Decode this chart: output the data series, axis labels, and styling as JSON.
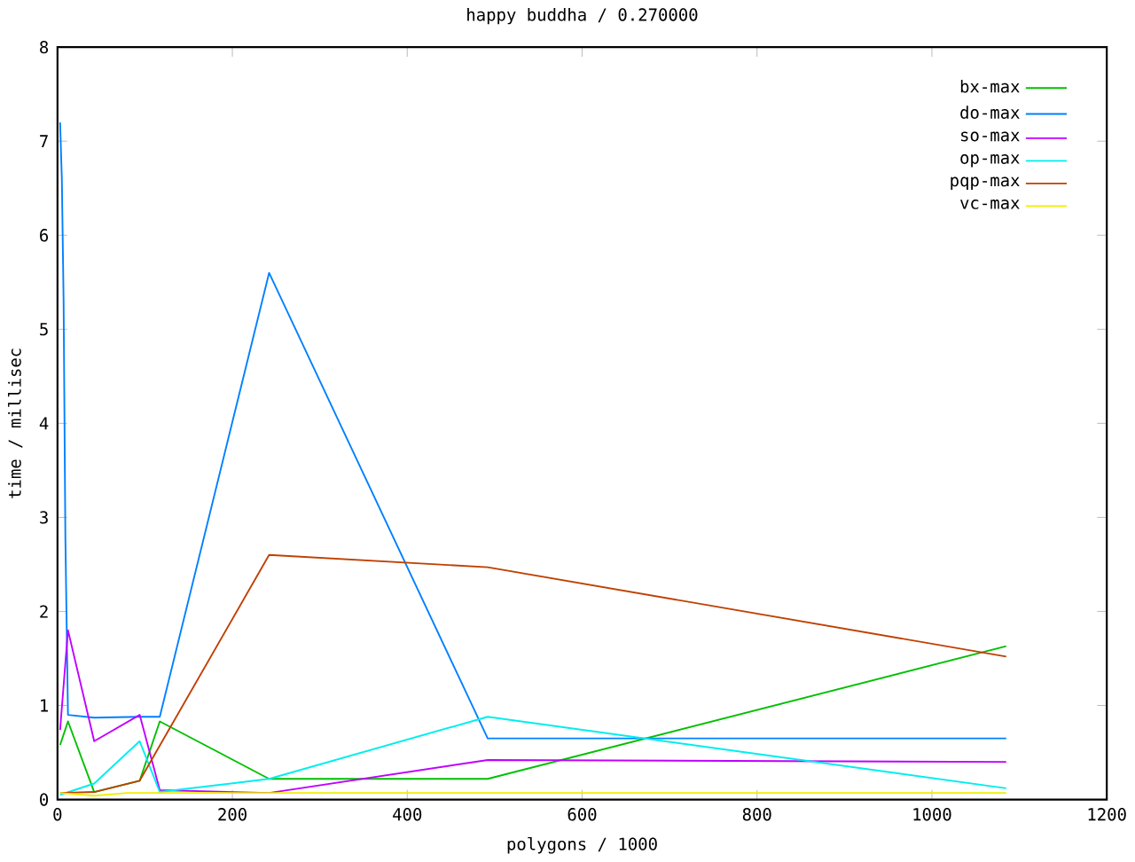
{
  "chart_data": {
    "type": "line",
    "title": "happy buddha / 0.270000",
    "xlabel": "polygons / 1000",
    "ylabel": "time / millisec",
    "xlim": [
      0,
      1200
    ],
    "xticks": [
      0,
      200,
      400,
      600,
      800,
      1000,
      1200
    ],
    "ylim": [
      0,
      8
    ],
    "yticks": [
      0,
      1,
      2,
      3,
      4,
      5,
      6,
      7,
      8
    ],
    "grid": false,
    "legend": "top right",
    "marker": "none",
    "line_style": "solid",
    "series": [
      {
        "name": "bx-max",
        "color": "#00c000",
        "x": [
          3,
          12,
          42,
          94,
          117,
          242,
          492,
          1085
        ],
        "values": [
          0.58,
          0.83,
          0.08,
          0.2,
          0.83,
          0.22,
          0.22,
          1.63
        ]
      },
      {
        "name": "do-max",
        "color": "#0080ff",
        "x": [
          3,
          5,
          7,
          9,
          12,
          42,
          94,
          117,
          242,
          492,
          1085
        ],
        "values": [
          7.2,
          6.6,
          5.3,
          2.8,
          0.9,
          0.87,
          0.88,
          0.88,
          5.6,
          0.65,
          0.65
        ]
      },
      {
        "name": "so-max",
        "color": "#c000ff",
        "x": [
          3,
          12,
          42,
          94,
          117,
          242,
          492,
          1085
        ],
        "values": [
          0.74,
          1.8,
          0.62,
          0.9,
          0.1,
          0.07,
          0.42,
          0.4
        ]
      },
      {
        "name": "op-max",
        "color": "#00eeee",
        "x": [
          3,
          42,
          94,
          117,
          242,
          492,
          1085
        ],
        "values": [
          0.05,
          0.17,
          0.62,
          0.08,
          0.22,
          0.88,
          0.12
        ]
      },
      {
        "name": "pqp-max",
        "color": "#c04000",
        "x": [
          3,
          42,
          94,
          242,
          492,
          1085
        ],
        "values": [
          0.07,
          0.08,
          0.2,
          2.6,
          2.47,
          1.52
        ]
      },
      {
        "name": "vc-max",
        "color": "#eeee00",
        "x": [
          3,
          42,
          80,
          1085
        ],
        "values": [
          0.07,
          0.04,
          0.07,
          0.07
        ]
      }
    ]
  }
}
